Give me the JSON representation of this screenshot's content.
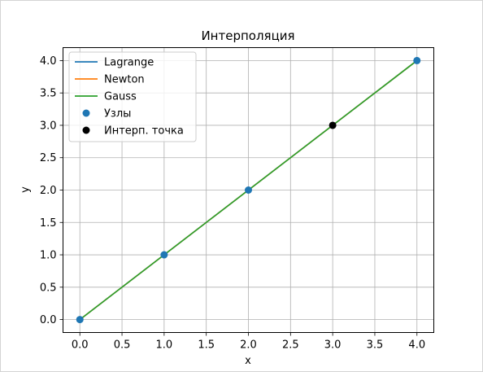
{
  "chart_data": {
    "type": "line",
    "title": "Интерполяция",
    "xlabel": "x",
    "ylabel": "y",
    "xlim": [
      -0.2,
      4.2
    ],
    "ylim": [
      -0.2,
      4.2
    ],
    "xticks": [
      0.0,
      0.5,
      1.0,
      1.5,
      2.0,
      2.5,
      3.0,
      3.5,
      4.0
    ],
    "yticks": [
      0.0,
      0.5,
      1.0,
      1.5,
      2.0,
      2.5,
      3.0,
      3.5,
      4.0
    ],
    "xtick_labels": [
      "0.0",
      "0.5",
      "1.0",
      "1.5",
      "2.0",
      "2.5",
      "3.0",
      "3.5",
      "4.0"
    ],
    "ytick_labels": [
      "0.0",
      "0.5",
      "1.0",
      "1.5",
      "2.0",
      "2.5",
      "3.0",
      "3.5",
      "4.0"
    ],
    "grid": true,
    "legend_position": "top-left",
    "series": [
      {
        "name": "Lagrange",
        "kind": "line",
        "color": "#1f77b4",
        "x": [
          0,
          4
        ],
        "y": [
          0,
          4
        ]
      },
      {
        "name": "Newton",
        "kind": "line",
        "color": "#ff7f0e",
        "x": [
          0,
          4
        ],
        "y": [
          0,
          4
        ]
      },
      {
        "name": "Gauss",
        "kind": "line",
        "color": "#2ca02c",
        "x": [
          0,
          4
        ],
        "y": [
          0,
          4
        ]
      },
      {
        "name": "Узлы",
        "kind": "scatter",
        "color": "#1f77b4",
        "x": [
          0,
          1,
          2,
          4
        ],
        "y": [
          0,
          1,
          2,
          4
        ]
      },
      {
        "name": "Интерп. точка",
        "kind": "scatter",
        "color": "#000000",
        "x": [
          3
        ],
        "y": [
          3
        ]
      }
    ]
  }
}
